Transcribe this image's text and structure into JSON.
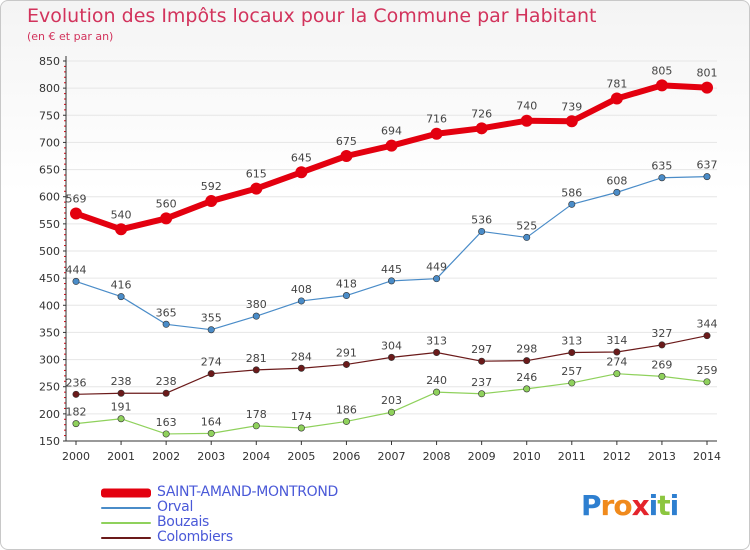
{
  "header": {
    "title": "Evolution des Impôts locaux pour la Commune par Habitant",
    "subtitle": "(en € et par an)"
  },
  "colors": {
    "title": "#d2335c",
    "axis": "#333333",
    "grid": "#e6e6e6",
    "legend_text": "#4a59d8"
  },
  "chart_data": {
    "type": "line",
    "x": [
      2000,
      2001,
      2002,
      2003,
      2004,
      2005,
      2006,
      2007,
      2008,
      2009,
      2010,
      2011,
      2012,
      2013,
      2014
    ],
    "ylim": [
      150,
      850
    ],
    "yticks": [
      150,
      200,
      250,
      300,
      350,
      400,
      450,
      500,
      550,
      600,
      650,
      700,
      750,
      800,
      850
    ],
    "grid": true,
    "legend_position": "bottom-left",
    "series": [
      {
        "name": "SAINT-AMAND-MONTROND",
        "color": "#e3000f",
        "values": [
          569,
          540,
          560,
          592,
          615,
          645,
          675,
          694,
          716,
          726,
          740,
          739,
          781,
          805,
          801
        ]
      },
      {
        "name": "Orval",
        "color": "#4a8cc8",
        "values": [
          444,
          416,
          365,
          355,
          380,
          408,
          418,
          445,
          449,
          536,
          525,
          586,
          608,
          635,
          637
        ]
      },
      {
        "name": "Bouzais",
        "color": "#8fd15c",
        "values": [
          182,
          191,
          163,
          164,
          178,
          174,
          186,
          203,
          240,
          237,
          246,
          257,
          274,
          269,
          259
        ]
      },
      {
        "name": "Colombiers",
        "color": "#6b1a1a",
        "values": [
          236,
          238,
          238,
          274,
          281,
          284,
          291,
          304,
          313,
          297,
          298,
          313,
          314,
          327,
          344
        ]
      }
    ]
  },
  "legend": {
    "items": [
      {
        "label": "SAINT-AMAND-MONTROND",
        "color": "#e3000f"
      },
      {
        "label": "Orval",
        "color": "#4a8cc8"
      },
      {
        "label": "Bouzais",
        "color": "#8fd15c"
      },
      {
        "label": "Colombiers",
        "color": "#6b1a1a"
      }
    ]
  },
  "logo": {
    "letters": [
      {
        "char": "P",
        "color": "#2e7fd0"
      },
      {
        "char": "r",
        "color": "#f08a1c"
      },
      {
        "char": "o",
        "color": "#f08a1c"
      },
      {
        "char": "x",
        "color": "#e4242c"
      },
      {
        "char": "i",
        "color": "#2e7fd0"
      },
      {
        "char": "t",
        "color": "#8cc63f"
      },
      {
        "char": "i",
        "color": "#2e7fd0"
      }
    ]
  }
}
